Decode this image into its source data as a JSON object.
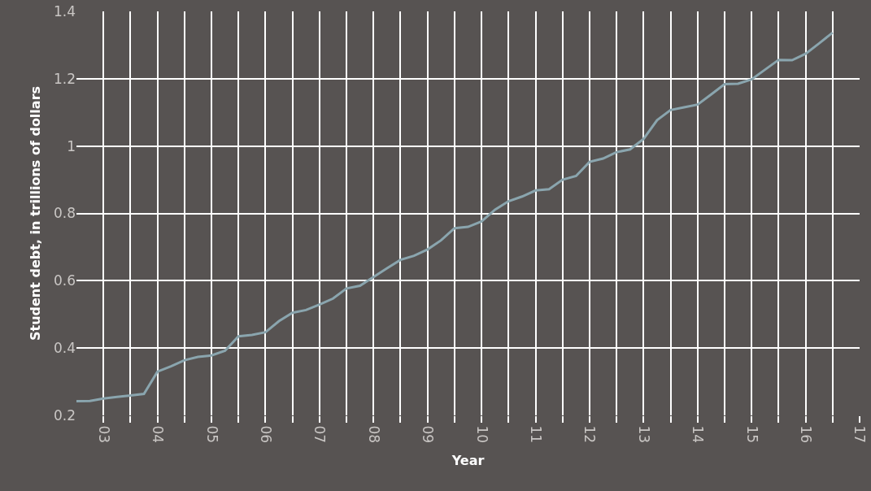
{
  "chart_data": {
    "type": "line",
    "xlabel": "Year",
    "ylabel": "Student debt, in trillions of dollars",
    "x": [
      2002.5,
      2002.75,
      2003,
      2003.25,
      2003.5,
      2003.75,
      2004,
      2004.25,
      2004.5,
      2004.75,
      2005,
      2005.25,
      2005.5,
      2005.75,
      2006,
      2006.25,
      2006.5,
      2006.75,
      2007,
      2007.25,
      2007.5,
      2007.75,
      2008,
      2008.25,
      2008.5,
      2008.75,
      2009,
      2009.25,
      2009.5,
      2009.75,
      2010,
      2010.25,
      2010.5,
      2010.75,
      2011,
      2011.25,
      2011.5,
      2011.75,
      2012,
      2012.25,
      2012.5,
      2012.75,
      2013,
      2013.25,
      2013.5,
      2013.75,
      2014,
      2014.25,
      2014.5,
      2014.75,
      2015,
      2015.25,
      2015.5,
      2015.75,
      2016,
      2016.25,
      2016.5
    ],
    "series": [
      {
        "color": "#8aa5ae",
        "values": [
          0.242,
          0.243,
          0.25,
          0.255,
          0.259,
          0.264,
          0.33,
          0.346,
          0.364,
          0.374,
          0.378,
          0.392,
          0.435,
          0.439,
          0.447,
          0.48,
          0.505,
          0.513,
          0.529,
          0.547,
          0.577,
          0.585,
          0.611,
          0.637,
          0.662,
          0.674,
          0.693,
          0.72,
          0.756,
          0.76,
          0.776,
          0.811,
          0.836,
          0.85,
          0.868,
          0.872,
          0.9,
          0.911,
          0.953,
          0.963,
          0.982,
          0.99,
          1.021,
          1.077,
          1.107,
          1.115,
          1.123,
          1.153,
          1.184,
          1.185,
          1.198,
          1.227,
          1.256,
          1.255,
          1.274,
          1.305,
          1.337
        ]
      }
    ],
    "xlim": [
      2002.5,
      2017
    ],
    "xticks": [
      {
        "value": 2003,
        "label": "03"
      },
      {
        "value": 2003.5,
        "label": null
      },
      {
        "value": 2004,
        "label": "04"
      },
      {
        "value": 2004.5,
        "label": null
      },
      {
        "value": 2005,
        "label": "05"
      },
      {
        "value": 2005.5,
        "label": null
      },
      {
        "value": 2006,
        "label": "06"
      },
      {
        "value": 2006.5,
        "label": null
      },
      {
        "value": 2007,
        "label": "07"
      },
      {
        "value": 2007.5,
        "label": null
      },
      {
        "value": 2008,
        "label": "08"
      },
      {
        "value": 2008.5,
        "label": null
      },
      {
        "value": 2009,
        "label": "09"
      },
      {
        "value": 2009.5,
        "label": null
      },
      {
        "value": 2010,
        "label": "10"
      },
      {
        "value": 2010.5,
        "label": null
      },
      {
        "value": 2011,
        "label": "11"
      },
      {
        "value": 2011.5,
        "label": null
      },
      {
        "value": 2012,
        "label": "12"
      },
      {
        "value": 2012.5,
        "label": null
      },
      {
        "value": 2013,
        "label": "13"
      },
      {
        "value": 2013.5,
        "label": null
      },
      {
        "value": 2014,
        "label": "14"
      },
      {
        "value": 2014.5,
        "label": null
      },
      {
        "value": 2015,
        "label": "15"
      },
      {
        "value": 2015.5,
        "label": null
      },
      {
        "value": 2016,
        "label": "16"
      },
      {
        "value": 2016.5,
        "label": null
      },
      {
        "value": 2017,
        "label": "17"
      }
    ],
    "ylim": [
      0.2,
      1.4
    ],
    "yticks": [
      0.2,
      0.4,
      0.6,
      0.8,
      1,
      1.2,
      1.4
    ],
    "grid": true,
    "marker": "none",
    "line_style": "solid"
  }
}
